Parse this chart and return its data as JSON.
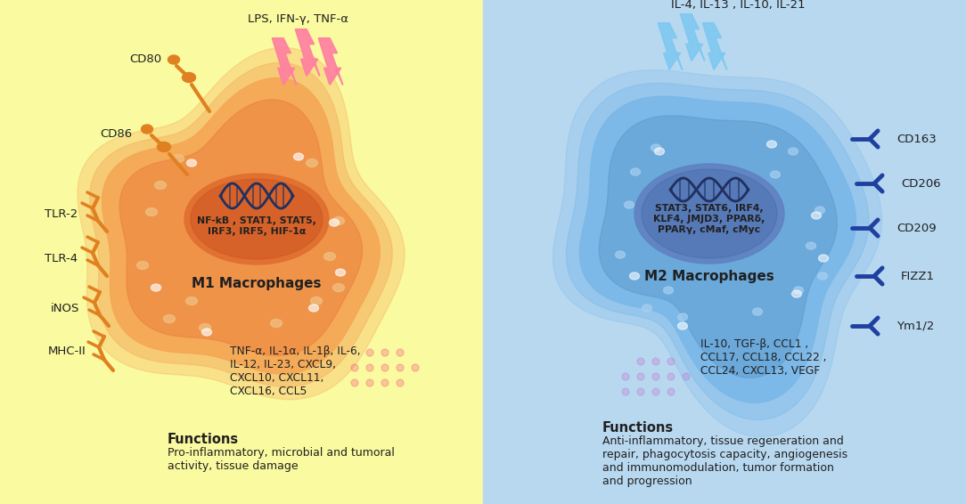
{
  "left_bg": "#FAFAA0",
  "right_bg": "#B8D8F0",
  "left_cell_outer": "#F5A855",
  "left_cell_inner": "#E8783A",
  "left_nucleus_outer": "#E07030",
  "left_nucleus_inner": "#CC5020",
  "right_cell_outer": "#7AB8E8",
  "right_cell_inner": "#5090C8",
  "right_nucleus_outer": "#6080C0",
  "right_nucleus_inner": "#4060A0",
  "left_lightning_color": "#FF80A0",
  "right_lightning_color": "#80C8F0",
  "left_dots_color": "#F53070",
  "right_dots_color": "#C060D0",
  "left_receptor_color": "#E08020",
  "right_receptor_color": "#2040A0",
  "dna_color": "#203060",
  "text_color": "#202020",
  "left_stimuli": "LPS, IFN-γ, TNF-α",
  "right_stimuli": "IL-4, IL-13 , IL-10, IL-21",
  "left_cell_label": "M1 Macrophages",
  "right_cell_label": "M2 Macrophages",
  "left_nucleus_text": "NF-kB , STAT1, STAT5,\nIRF3, IRF5, HIF-1α",
  "right_nucleus_text": "STAT3, STAT6, IRF4,\nKLF4, JMJD3, PPARδ,\nPPARγ, cMaf, cMyc",
  "left_receptors": [
    "CD80",
    "CD86",
    "TLR-2",
    "TLR-4",
    "iNOS",
    "MHC-II"
  ],
  "right_receptors": [
    "CD163",
    "CD206",
    "CD209",
    "FIZZ1",
    "Ym1/2"
  ],
  "left_cytokines": "TNF-α, IL-1α, IL-1β, IL-6,\nIL-12, IL-23, CXCL9,\nCXCL10, CXCL11,\nCXCL16, CCL5",
  "right_cytokines": "IL-10, TGF-β, CCL1 ,\nCCL17, CCL18, CCL22 ,\nCCL24, CXCL13, VEGF",
  "left_functions_title": "Functions",
  "left_functions_text": "Pro-inflammatory, microbial and tumoral\nactivity, tissue damage",
  "right_functions_title": "Functions",
  "right_functions_text": "Anti-inflammatory, tissue regeneration and\nrepair, phagocytosis capacity, angiogenesis\nand immunomodulation, tumor formation\nand progression"
}
